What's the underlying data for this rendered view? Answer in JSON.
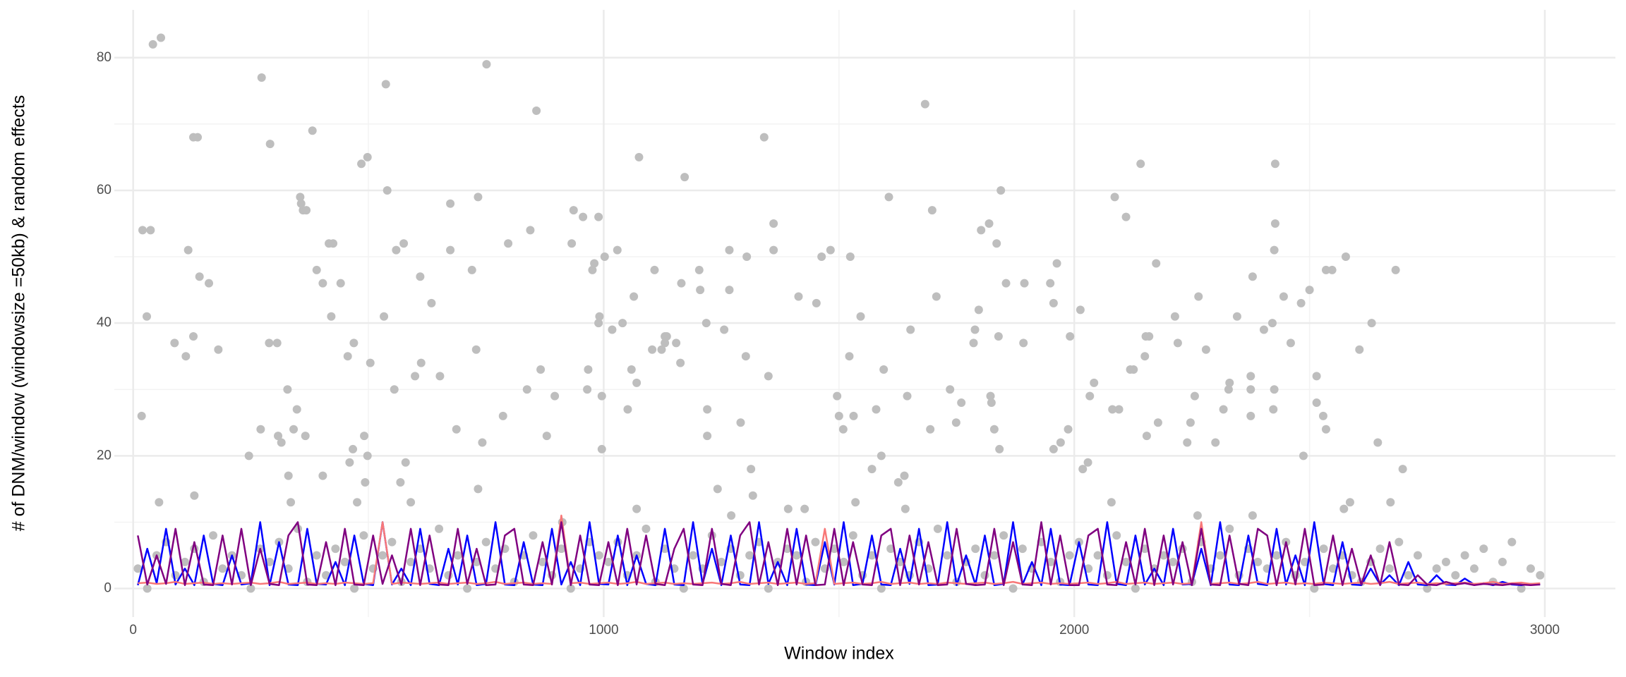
{
  "chart_data": {
    "type": "scatter",
    "xlabel": "Window index",
    "ylabel": "# of DNM/window (windowsize =50kb) & random effects",
    "xlim": [
      -40,
      3150
    ],
    "ylim": [
      -4.3,
      87.2
    ],
    "xticks": [
      0,
      1000,
      2000,
      3000
    ],
    "yticks": [
      0,
      20,
      40,
      60,
      80
    ],
    "minor_xticks": [
      500,
      1500,
      2500
    ],
    "minor_yticks": [
      10,
      30,
      50,
      70
    ],
    "grid": true,
    "points": {
      "color": "#bebebe",
      "x": [
        42,
        59,
        18,
        20,
        37,
        29,
        55,
        88,
        112,
        117,
        128,
        137,
        128,
        130,
        141,
        161,
        181,
        246,
        273,
        271,
        289,
        291,
        306,
        308,
        315,
        328,
        330,
        335,
        341,
        348,
        355,
        357,
        361,
        368,
        366,
        381,
        390,
        403,
        403,
        416,
        425,
        421,
        441,
        456,
        460,
        469,
        467,
        476,
        485,
        498,
        491,
        493,
        498,
        504,
        533,
        537,
        540,
        555,
        559,
        568,
        575,
        579,
        590,
        599,
        612,
        610,
        634,
        652,
        674,
        674,
        687,
        720,
        729,
        733,
        733,
        742,
        751,
        786,
        797,
        837,
        844,
        857,
        866,
        879,
        896,
        912,
        932,
        936,
        956,
        965,
        967,
        976,
        980,
        989,
        991,
        989,
        996,
        996,
        1002,
        1018,
        1029,
        1040,
        1051,
        1059,
        1064,
        1070,
        1070,
        1075,
        1103,
        1108,
        1123,
        1130,
        1130,
        1134,
        1154,
        1163,
        1172,
        1165,
        1203,
        1205,
        1218,
        1220,
        1220,
        1242,
        1256,
        1267,
        1267,
        1271,
        1291,
        1302,
        1304,
        1313,
        1317,
        1341,
        1350,
        1361,
        1361,
        1392,
        1414,
        1427,
        1452,
        1463,
        1482,
        1496,
        1500,
        1509,
        1522,
        1524,
        1531,
        1535,
        1546,
        1570,
        1579,
        1590,
        1595,
        1606,
        1626,
        1639,
        1641,
        1645,
        1652,
        1683,
        1694,
        1698,
        1707,
        1736,
        1749,
        1760,
        1786,
        1789,
        1797,
        1802,
        1819,
        1822,
        1824,
        1830,
        1835,
        1839,
        1841,
        1844,
        1855,
        1892,
        1894,
        1949,
        1956,
        1963,
        1956,
        1971,
        1987,
        1991,
        2013,
        2018,
        2029,
        2033,
        2042,
        2079,
        2081,
        2086,
        2095,
        2110,
        2119,
        2126,
        2141,
        2150,
        2152,
        2159,
        2154,
        2174,
        2178,
        2214,
        2220,
        2240,
        2247,
        2256,
        2262,
        2264,
        2280,
        2300,
        2317,
        2328,
        2330,
        2346,
        2375,
        2375,
        2375,
        2379,
        2379,
        2403,
        2421,
        2423,
        2425,
        2425,
        2427,
        2427,
        2445,
        2460,
        2482,
        2487,
        2500,
        2515,
        2515,
        2529,
        2535,
        2535,
        2548,
        2573,
        2577,
        2586,
        2606,
        2632,
        2645,
        2672,
        2683,
        2698,
        10,
        30,
        50,
        70,
        90,
        110,
        130,
        150,
        170,
        190,
        210,
        230,
        250,
        270,
        290,
        310,
        330,
        350,
        370,
        390,
        410,
        430,
        450,
        470,
        490,
        510,
        530,
        550,
        570,
        590,
        610,
        630,
        650,
        670,
        690,
        710,
        730,
        750,
        770,
        790,
        810,
        830,
        850,
        870,
        890,
        910,
        930,
        950,
        970,
        990,
        1010,
        1030,
        1050,
        1070,
        1090,
        1110,
        1130,
        1150,
        1170,
        1190,
        1210,
        1230,
        1250,
        1270,
        1290,
        1310,
        1330,
        1350,
        1370,
        1390,
        1410,
        1430,
        1450,
        1470,
        1490,
        1510,
        1530,
        1550,
        1570,
        1590,
        1610,
        1630,
        1650,
        1670,
        1690,
        1710,
        1730,
        1750,
        1770,
        1790,
        1810,
        1830,
        1850,
        1870,
        1890,
        1910,
        1930,
        1950,
        1970,
        1990,
        2010,
        2030,
        2050,
        2070,
        2090,
        2110,
        2130,
        2150,
        2170,
        2190,
        2210,
        2230,
        2250,
        2270,
        2290,
        2310,
        2330,
        2350,
        2370,
        2390,
        2410,
        2430,
        2450,
        2470,
        2490,
        2510,
        2530,
        2550,
        2570,
        2590,
        2610,
        2630,
        2650,
        2670,
        2690,
        2710,
        2730,
        2750,
        2770,
        2790,
        2810,
        2830,
        2850,
        2870,
        2890,
        2910,
        2930,
        2950,
        2970,
        2990
      ],
      "y": [
        82,
        83,
        26,
        54,
        54,
        41,
        13,
        37,
        35,
        51,
        68,
        68,
        38,
        14,
        47,
        46,
        36,
        20,
        77,
        24,
        37,
        67,
        37,
        23,
        22,
        30,
        17,
        13,
        24,
        27,
        59,
        58,
        57,
        57,
        23,
        69,
        48,
        46,
        17,
        52,
        52,
        41,
        46,
        35,
        19,
        37,
        21,
        13,
        64,
        65,
        23,
        16,
        20,
        34,
        41,
        76,
        60,
        30,
        51,
        16,
        52,
        19,
        13,
        32,
        34,
        47,
        43,
        32,
        51,
        58,
        24,
        48,
        36,
        59,
        15,
        22,
        79,
        26,
        52,
        30,
        54,
        72,
        33,
        23,
        29,
        10,
        52,
        57,
        56,
        30,
        33,
        48,
        49,
        56,
        41,
        40,
        29,
        21,
        50,
        39,
        51,
        40,
        27,
        33,
        44,
        31,
        12,
        65,
        36,
        48,
        36,
        37,
        38,
        38,
        37,
        34,
        62,
        46,
        48,
        45,
        40,
        27,
        23,
        15,
        39,
        51,
        45,
        11,
        25,
        35,
        50,
        18,
        14,
        68,
        32,
        55,
        51,
        12,
        44,
        12,
        43,
        50,
        51,
        29,
        26,
        24,
        35,
        50,
        26,
        13,
        41,
        18,
        27,
        20,
        33,
        59,
        16,
        17,
        12,
        29,
        39,
        73,
        24,
        57,
        44,
        30,
        25,
        28,
        37,
        39,
        42,
        54,
        55,
        29,
        28,
        24,
        52,
        38,
        21,
        60,
        46,
        37,
        46,
        46,
        43,
        49,
        21,
        22,
        24,
        38,
        42,
        18,
        19,
        29,
        31,
        13,
        27,
        59,
        27,
        56,
        33,
        33,
        64,
        35,
        38,
        38,
        23,
        49,
        25,
        41,
        37,
        22,
        25,
        29,
        11,
        44,
        36,
        22,
        27,
        30,
        31,
        41,
        32,
        30,
        26,
        47,
        11,
        39,
        40,
        27,
        30,
        51,
        55,
        64,
        44,
        37,
        43,
        20,
        45,
        32,
        28,
        26,
        24,
        48,
        48,
        12,
        50,
        13,
        36,
        40,
        22,
        13,
        48,
        18,
        3,
        0,
        5,
        7,
        2,
        4,
        6,
        1,
        8,
        3,
        5,
        2,
        0,
        6,
        4,
        7,
        3,
        9,
        1,
        5,
        2,
        6,
        4,
        0,
        8,
        3,
        5,
        7,
        1,
        4,
        6,
        3,
        9,
        2,
        5,
        0,
        4,
        7,
        3,
        6,
        1,
        5,
        8,
        4,
        2,
        6,
        0,
        3,
        7,
        5,
        4,
        7,
        2,
        5,
        9,
        1,
        6,
        3,
        0,
        5,
        3,
        8,
        4,
        6,
        2,
        5,
        7,
        0,
        4,
        6,
        5,
        1,
        7,
        3,
        6,
        4,
        8,
        2,
        5,
        0,
        6,
        4,
        2,
        7,
        3,
        9,
        5,
        1,
        4,
        6,
        2,
        5,
        8,
        0,
        6,
        3,
        7,
        4,
        1,
        5,
        7,
        3,
        5,
        2,
        8,
        4,
        0,
        6,
        3,
        5,
        4,
        6,
        1,
        7,
        3,
        5,
        9,
        2,
        6,
        4,
        3,
        5,
        7,
        2,
        4,
        0,
        6,
        3,
        5,
        2,
        1,
        4,
        6,
        3,
        7,
        2,
        5,
        0,
        3,
        4,
        2,
        5,
        3,
        6,
        1,
        4,
        7,
        0,
        3,
        2
      ]
    },
    "line_x": [
      10,
      30,
      50,
      70,
      90,
      110,
      130,
      150,
      170,
      190,
      210,
      230,
      250,
      270,
      290,
      310,
      330,
      350,
      370,
      390,
      410,
      430,
      450,
      470,
      490,
      510,
      530,
      550,
      570,
      590,
      610,
      630,
      650,
      670,
      690,
      710,
      730,
      750,
      770,
      790,
      810,
      830,
      850,
      870,
      890,
      910,
      930,
      950,
      970,
      990,
      1010,
      1030,
      1050,
      1070,
      1090,
      1110,
      1130,
      1150,
      1170,
      1190,
      1210,
      1230,
      1250,
      1270,
      1290,
      1310,
      1330,
      1350,
      1370,
      1390,
      1410,
      1430,
      1450,
      1470,
      1490,
      1510,
      1530,
      1550,
      1570,
      1590,
      1610,
      1630,
      1650,
      1670,
      1690,
      1710,
      1730,
      1750,
      1770,
      1790,
      1810,
      1830,
      1850,
      1870,
      1890,
      1910,
      1930,
      1950,
      1970,
      1990,
      2010,
      2030,
      2050,
      2070,
      2090,
      2110,
      2130,
      2150,
      2170,
      2190,
      2210,
      2230,
      2250,
      2270,
      2290,
      2310,
      2330,
      2350,
      2370,
      2390,
      2410,
      2430,
      2450,
      2470,
      2490,
      2510,
      2530,
      2550,
      2570,
      2590,
      2610,
      2630,
      2650,
      2670,
      2690,
      2710,
      2730,
      2750,
      2770,
      2790,
      2810,
      2830,
      2850,
      2870,
      2890,
      2910,
      2930,
      2950,
      2970,
      2990
    ],
    "lines": [
      {
        "color": "#0000ff",
        "values": [
          0.5,
          6,
          0.8,
          9,
          0.6,
          3,
          0.5,
          8,
          0.7,
          0.5,
          5,
          0.6,
          0.8,
          10,
          0.5,
          7,
          0.6,
          0.5,
          9,
          0.7,
          0.6,
          4,
          0.5,
          8,
          0.7,
          0.5,
          10,
          0.6,
          3,
          0.5,
          9,
          0.7,
          0.5,
          6,
          0.6,
          8,
          0.5,
          0.7,
          10,
          0.6,
          0.5,
          7,
          0.6,
          0.5,
          9,
          0.6,
          4,
          0.5,
          10,
          0.7,
          0.6,
          8,
          0.5,
          5,
          0.7,
          0.5,
          9,
          0.6,
          0.5,
          10,
          0.7,
          6,
          0.5,
          8,
          0.6,
          0.5,
          10,
          0.7,
          4,
          0.5,
          9,
          0.6,
          0.5,
          7,
          0.6,
          10,
          0.5,
          0.7,
          8,
          0.6,
          0.5,
          6,
          0.7,
          9,
          0.5,
          0.6,
          10,
          0.5,
          5,
          0.6,
          8,
          0.5,
          0.7,
          10,
          0.6,
          4,
          0.5,
          9,
          0.6,
          0.5,
          7,
          0.6,
          0.5,
          10,
          0.7,
          0.5,
          8,
          0.6,
          3,
          0.5,
          9,
          0.6,
          0.7,
          6,
          0.5,
          10,
          0.6,
          0.5,
          8,
          0.7,
          0.5,
          9,
          0.6,
          5,
          0.5,
          10,
          0.7,
          0.5,
          7,
          0.6,
          0.5,
          3,
          0.6,
          2,
          0.5,
          4,
          0.6,
          0.5,
          2,
          0.6,
          0.5,
          1.5,
          0.6,
          0.8,
          0.5,
          1,
          0.6,
          0.5,
          0.7,
          0.6
        ]
      },
      {
        "color": "#f87878",
        "values": [
          0.8,
          0.9,
          0.7,
          0.8,
          1,
          0.7,
          0.8,
          0.9,
          0.7,
          0.8,
          0.7,
          0.8,
          0.9,
          0.7,
          0.8,
          1,
          0.7,
          0.8,
          0.9,
          0.7,
          0.8,
          0.7,
          0.9,
          0.8,
          0.7,
          0.8,
          10,
          0.7,
          0.9,
          0.8,
          0.7,
          0.8,
          0.9,
          0.7,
          0.8,
          0.9,
          0.7,
          0.8,
          1,
          0.7,
          0.8,
          0.9,
          0.7,
          0.8,
          0.7,
          11,
          0.8,
          0.9,
          0.7,
          0.8,
          0.9,
          0.7,
          0.8,
          1,
          0.7,
          0.8,
          0.9,
          0.7,
          0.8,
          0.7,
          0.8,
          0.9,
          0.7,
          0.8,
          1,
          0.7,
          0.8,
          0.9,
          0.7,
          0.8,
          0.9,
          0.7,
          0.8,
          9,
          0.7,
          0.8,
          0.9,
          0.7,
          0.8,
          1,
          0.7,
          0.8,
          0.9,
          0.7,
          0.8,
          0.7,
          0.9,
          0.8,
          0.7,
          0.8,
          0.9,
          0.7,
          0.8,
          1,
          0.7,
          0.8,
          0.9,
          0.7,
          0.8,
          0.7,
          0.8,
          0.9,
          0.7,
          0.8,
          1,
          0.7,
          0.8,
          0.9,
          0.7,
          0.8,
          0.9,
          0.7,
          0.8,
          10,
          0.7,
          0.8,
          0.9,
          0.7,
          0.8,
          1,
          0.7,
          0.8,
          0.9,
          0.7,
          0.8,
          0.7,
          0.9,
          0.8,
          0.7,
          0.8,
          0.9,
          0.7,
          0.8,
          1,
          0.7,
          0.8,
          0.9,
          0.7,
          0.8,
          0.7,
          0.8,
          0.9,
          0.7,
          0.8,
          1,
          0.7,
          0.8,
          0.9,
          0.7,
          0.8
        ]
      },
      {
        "color": "#800080",
        "values": [
          8,
          0.6,
          5,
          0.7,
          9,
          0.5,
          7,
          0.6,
          0.5,
          8,
          0.6,
          9,
          0.5,
          6,
          0.7,
          0.5,
          8,
          10,
          0.6,
          0.5,
          7,
          0.5,
          9,
          0.6,
          0.5,
          8,
          0.7,
          5,
          0.6,
          9,
          0.5,
          8,
          0.6,
          0.5,
          9,
          0.7,
          6,
          0.5,
          0.6,
          8,
          9,
          0.6,
          0.5,
          7,
          0.6,
          10,
          0.5,
          8,
          0.6,
          0.5,
          7,
          0.5,
          9,
          0.6,
          8,
          0.7,
          0.5,
          6,
          9,
          0.6,
          0.5,
          9,
          0.7,
          0.5,
          8,
          10,
          0.6,
          7,
          0.5,
          9,
          0.6,
          8,
          0.5,
          0.6,
          9,
          0.5,
          7,
          0.6,
          0.5,
          8,
          9,
          0.5,
          8,
          0.6,
          7,
          0.5,
          0.6,
          9,
          0.7,
          0.5,
          0.6,
          9,
          0.5,
          7,
          0.6,
          0.5,
          10,
          0.6,
          8,
          0.5,
          0.5,
          8,
          9,
          0.6,
          0.5,
          7,
          0.6,
          9,
          0.5,
          8,
          0.6,
          7,
          0.5,
          9,
          0.6,
          0.5,
          8,
          0.7,
          0.5,
          9,
          8,
          0.5,
          7,
          0.6,
          9,
          0.5,
          0.6,
          8,
          0.5,
          6,
          0.6,
          5,
          0.5,
          7,
          0.6,
          0.5,
          2,
          0.6,
          0.5,
          1,
          0.6,
          0.8,
          0.5,
          0.7,
          0.6,
          0.5,
          0.7,
          0.6,
          0.5,
          0.6
        ]
      }
    ]
  }
}
